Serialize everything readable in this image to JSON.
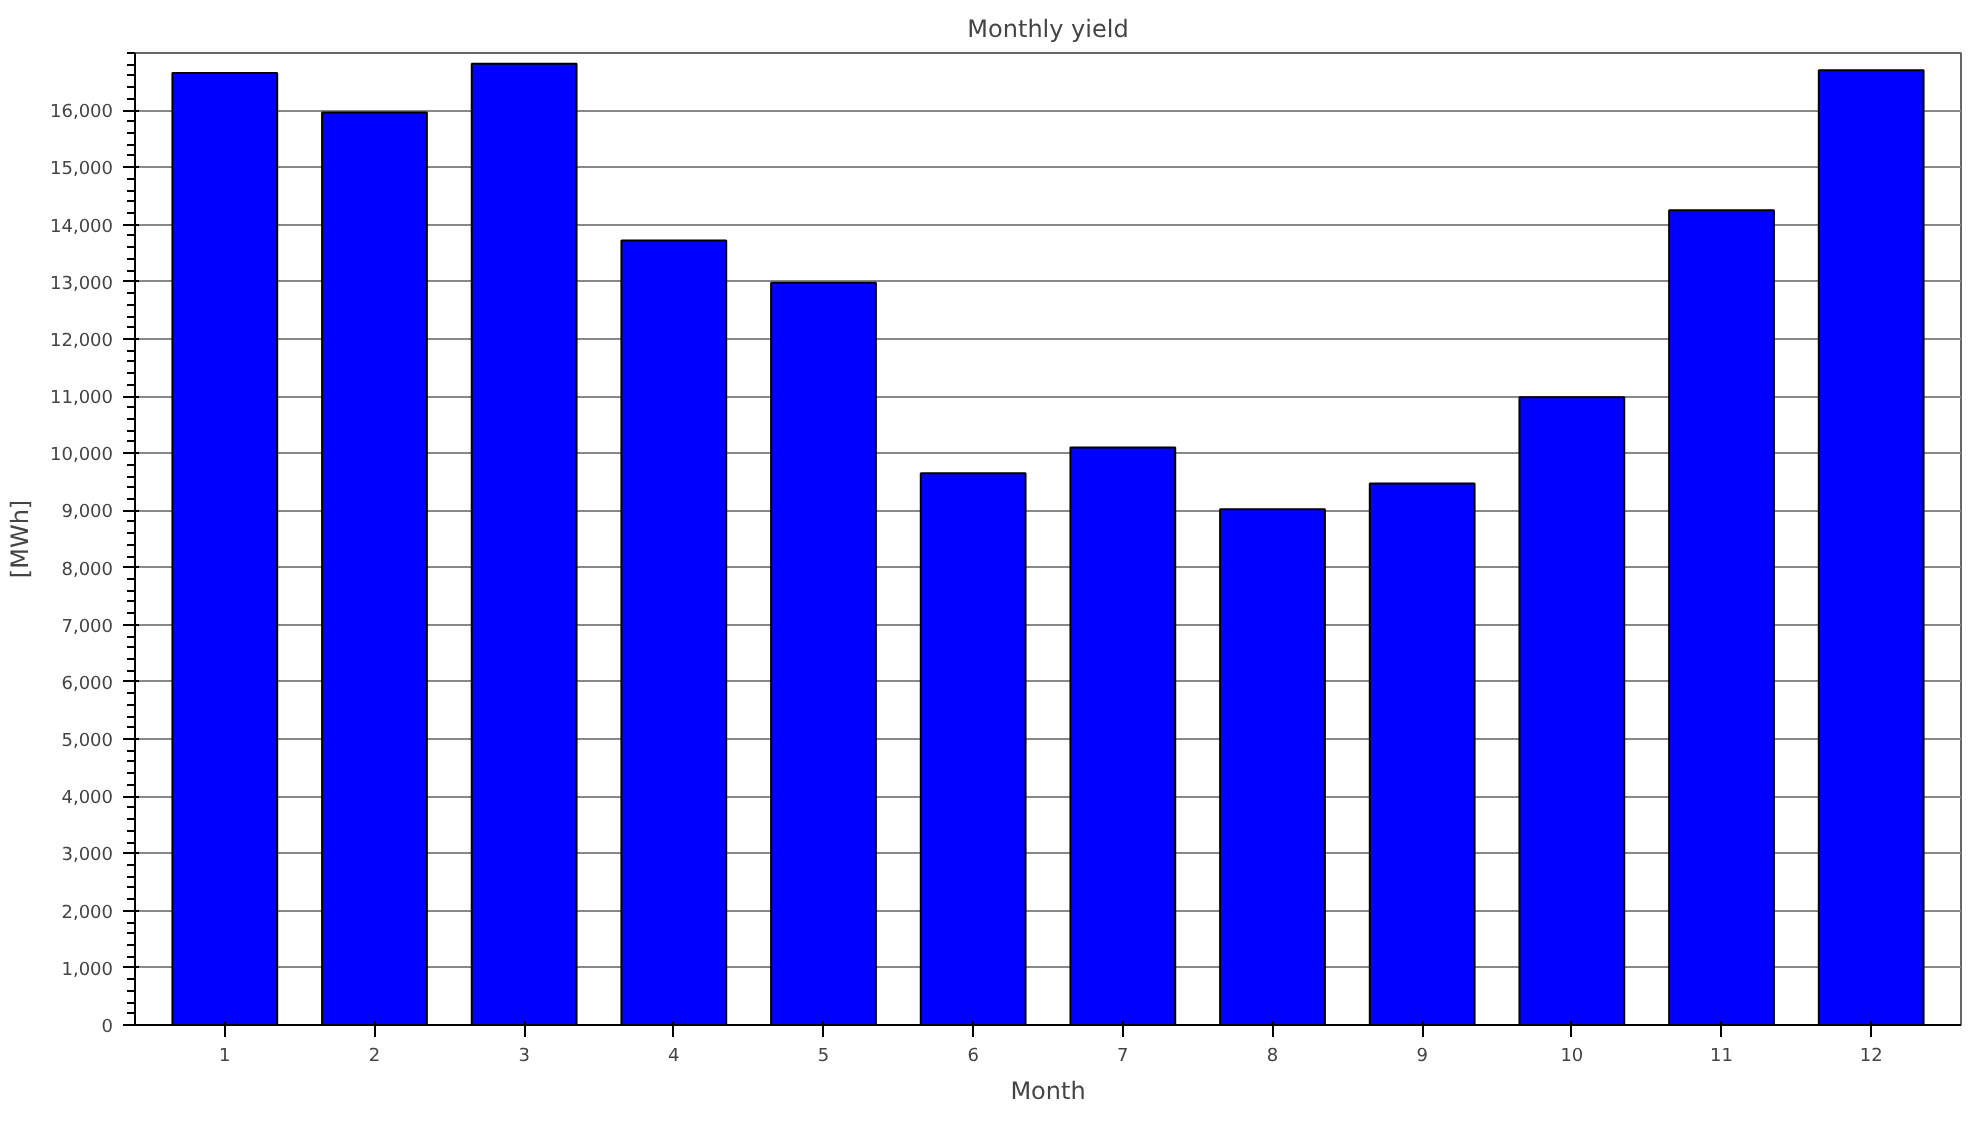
{
  "chart_data": {
    "type": "bar",
    "title": "Monthly yield",
    "xlabel": "Month",
    "ylabel": "[MWh]",
    "categories": [
      "1",
      "2",
      "3",
      "4",
      "5",
      "6",
      "7",
      "8",
      "9",
      "10",
      "11",
      "12"
    ],
    "series": [
      {
        "color": "#0000ff",
        "values": [
          16650,
          15960,
          16810,
          13720,
          12980,
          9650,
          10100,
          9020,
          9470,
          10980,
          14250,
          16700
        ]
      }
    ],
    "ylim": [
      0,
      17000
    ],
    "yticks": [
      {
        "value": 0,
        "label": "0"
      },
      {
        "value": 1000,
        "label": "1,000"
      },
      {
        "value": 2000,
        "label": "2,000"
      },
      {
        "value": 3000,
        "label": "3,000"
      },
      {
        "value": 4000,
        "label": "4,000"
      },
      {
        "value": 5000,
        "label": "5,000"
      },
      {
        "value": 6000,
        "label": "6,000"
      },
      {
        "value": 7000,
        "label": "7,000"
      },
      {
        "value": 8000,
        "label": "8,000"
      },
      {
        "value": 9000,
        "label": "9,000"
      },
      {
        "value": 10000,
        "label": "10,000"
      },
      {
        "value": 11000,
        "label": "11,000"
      },
      {
        "value": 12000,
        "label": "12,000"
      },
      {
        "value": 13000,
        "label": "13,000"
      },
      {
        "value": 14000,
        "label": "14,000"
      },
      {
        "value": 15000,
        "label": "15,000"
      },
      {
        "value": 16000,
        "label": "16,000"
      }
    ],
    "grid": "y"
  }
}
